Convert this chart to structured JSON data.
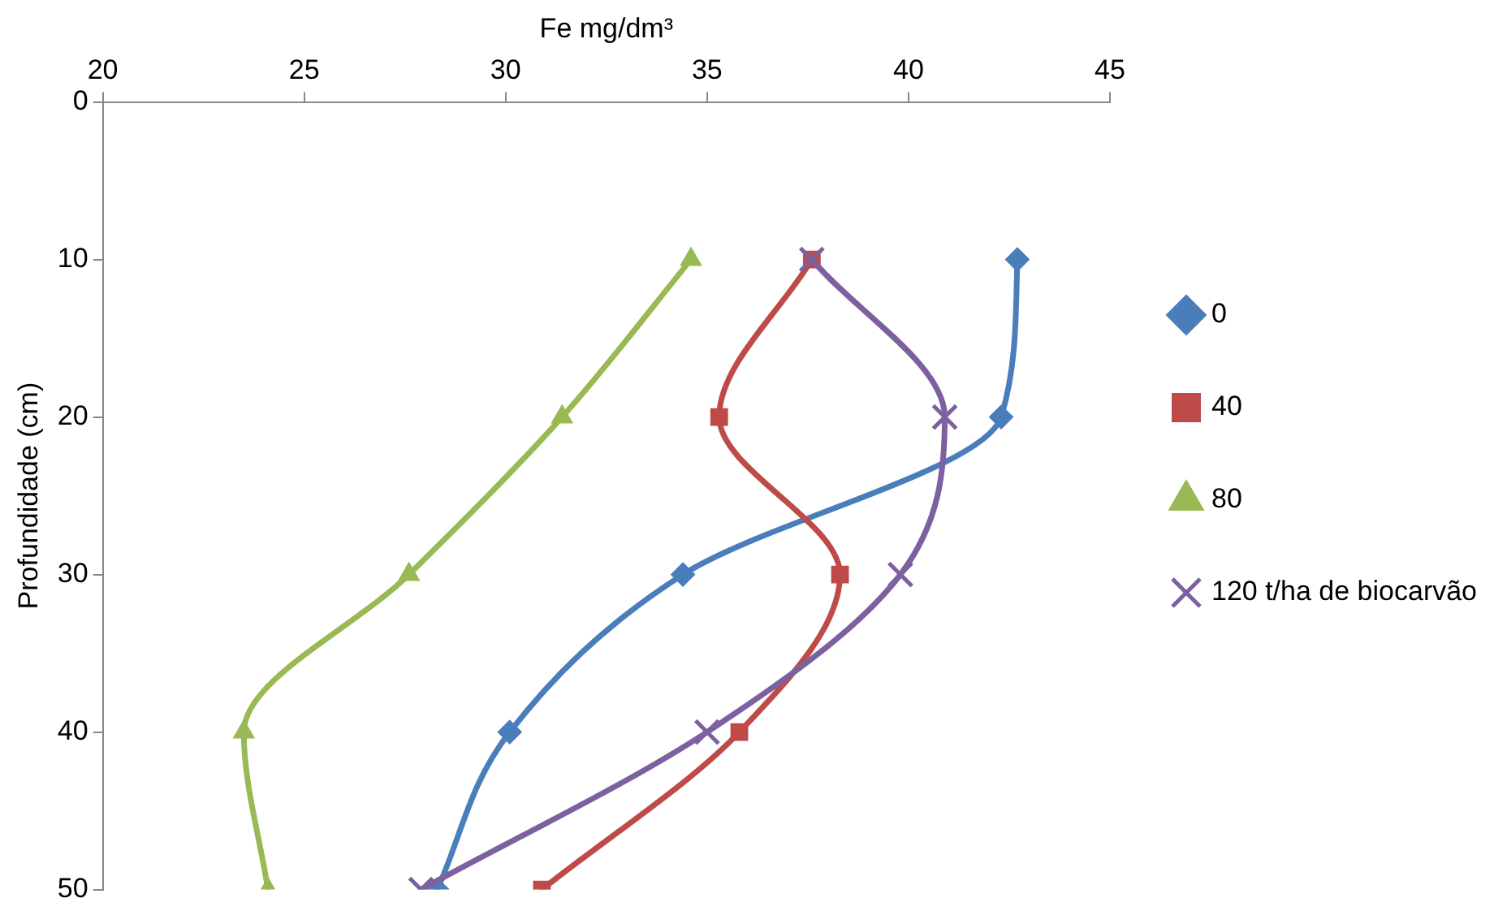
{
  "chart_data": {
    "type": "line",
    "xlabel": "Fe mg/dm³",
    "ylabel": "Profundidade (cm)",
    "xlim": [
      20,
      45
    ],
    "xticks": [
      20,
      25,
      30,
      35,
      40,
      45
    ],
    "ylim": [
      50,
      0
    ],
    "yticks": [
      0,
      10,
      20,
      30,
      40,
      50
    ],
    "grid": false,
    "legend": "right",
    "line_style": "solid",
    "series": [
      {
        "name": "0",
        "color": "#4a7ebb",
        "marker": "diamond",
        "x": [
          42.7,
          42.3,
          34.4,
          30.1,
          28.3
        ],
        "values": [
          10,
          20,
          30,
          40,
          50
        ]
      },
      {
        "name": "40",
        "color": "#be4b48",
        "marker": "square",
        "x": [
          37.6,
          35.3,
          38.3,
          35.8,
          30.9
        ],
        "values": [
          10,
          20,
          30,
          40,
          50
        ]
      },
      {
        "name": "80",
        "color": "#98b954",
        "marker": "triangle",
        "x": [
          34.6,
          31.4,
          27.6,
          23.5,
          24.1
        ],
        "values": [
          10,
          20,
          30,
          40,
          50
        ]
      },
      {
        "name": "120 t/ha de biocarvão",
        "color": "#7d60a0",
        "marker": "cross",
        "x": [
          37.6,
          40.9,
          39.8,
          35.0,
          27.9
        ],
        "values": [
          10,
          20,
          30,
          40,
          50
        ]
      }
    ]
  }
}
